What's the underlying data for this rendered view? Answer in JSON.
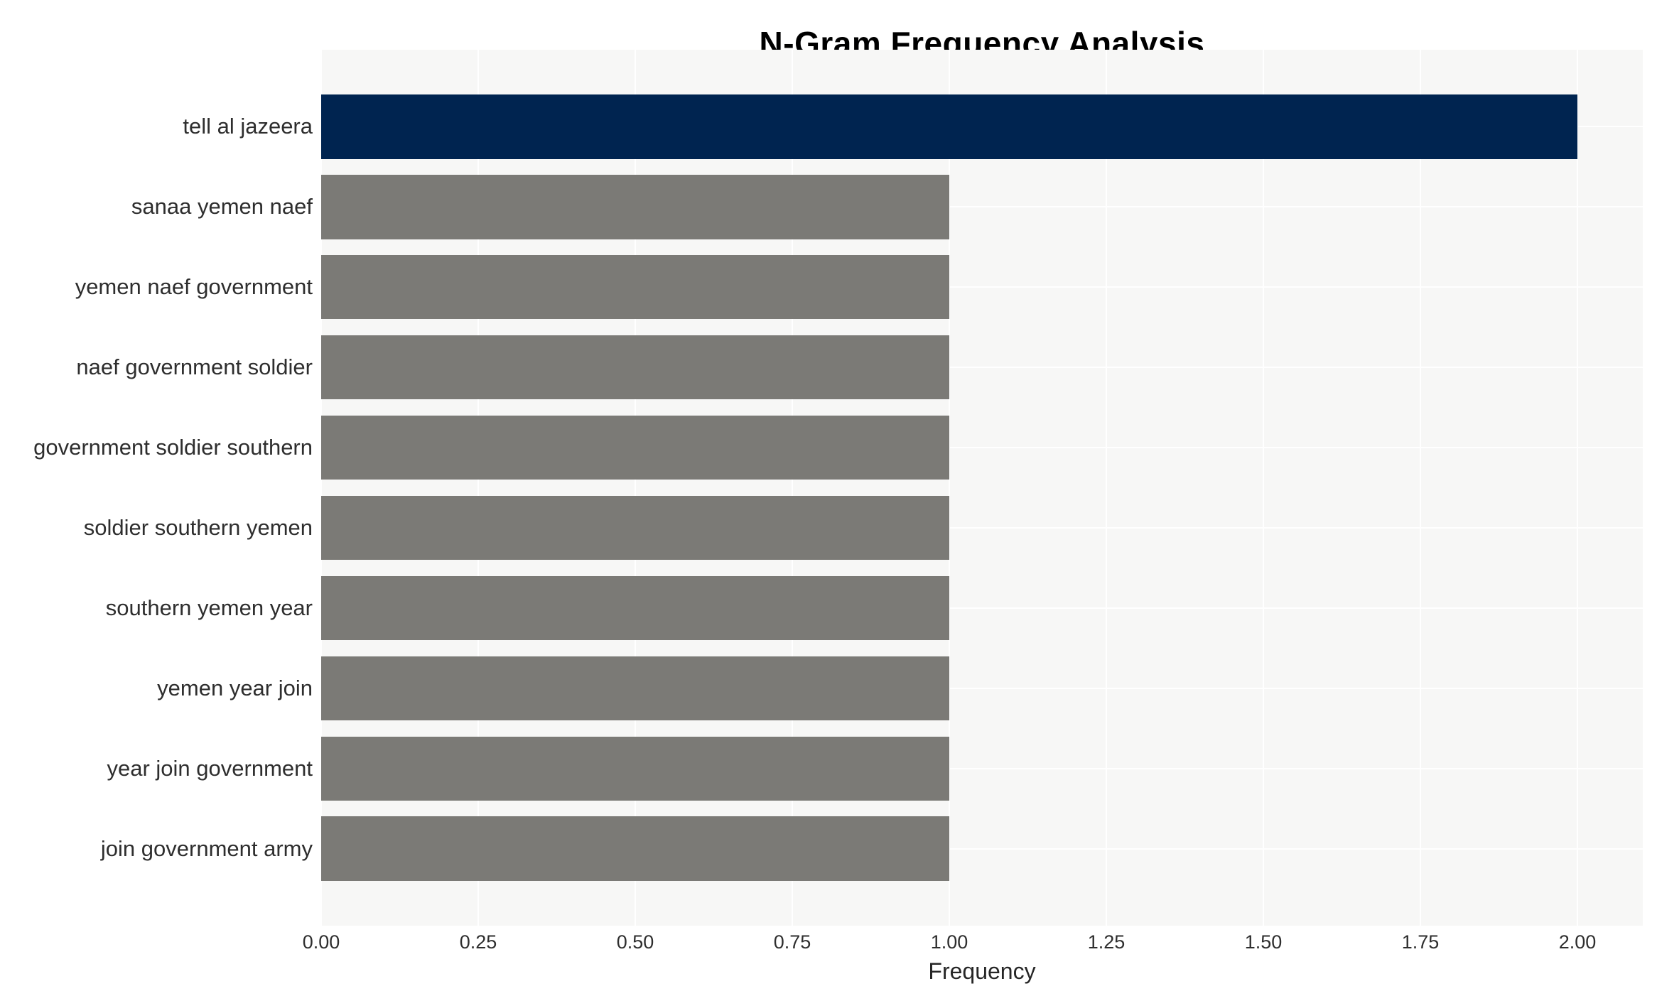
{
  "chart_data": {
    "type": "bar",
    "orientation": "horizontal",
    "title": "N-Gram Frequency Analysis",
    "xlabel": "Frequency",
    "ylabel": "",
    "categories": [
      "tell al jazeera",
      "sanaa yemen naef",
      "yemen naef government",
      "naef government soldier",
      "government soldier southern",
      "soldier southern yemen",
      "southern yemen year",
      "yemen year join",
      "year join government",
      "join government army"
    ],
    "values": [
      2.0,
      1.0,
      1.0,
      1.0,
      1.0,
      1.0,
      1.0,
      1.0,
      1.0,
      1.0
    ],
    "bar_colors": [
      "#002450",
      "#7b7a76",
      "#7b7a76",
      "#7b7a76",
      "#7b7a76",
      "#7b7a76",
      "#7b7a76",
      "#7b7a76",
      "#7b7a76",
      "#7b7a76"
    ],
    "x_ticks": [
      "0.00",
      "0.25",
      "0.50",
      "0.75",
      "1.00",
      "1.25",
      "1.50",
      "1.75",
      "2.00"
    ],
    "xlim": [
      0,
      2.104
    ],
    "grid": "major vertical and horizontal white gridlines on light panel",
    "legend": null,
    "colors": {
      "highlight_bar": "#002450",
      "default_bar": "#7b7a76",
      "panel_background": "#f7f7f6",
      "gridline": "#ffffff",
      "text": "#2e2e2e",
      "title_text": "#000000"
    }
  }
}
